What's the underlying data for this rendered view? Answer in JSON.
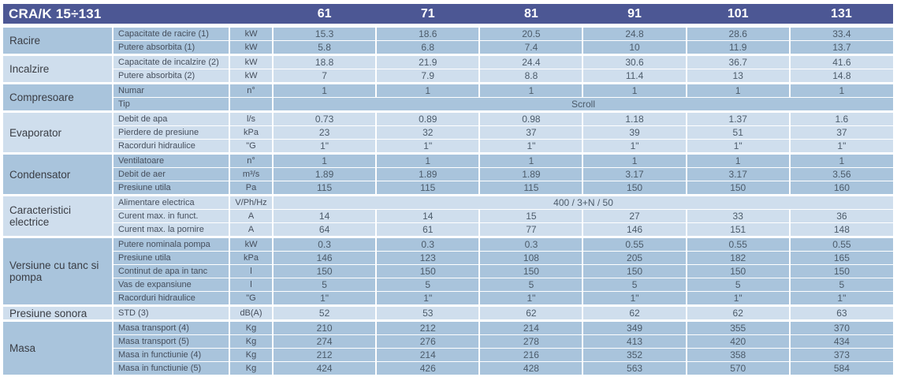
{
  "header": {
    "title": "CRA/K 15÷131",
    "columns": [
      "61",
      "71",
      "81",
      "91",
      "101",
      "131"
    ]
  },
  "colors": {
    "header_bg": "#4c5794",
    "header_text": "#ffffff",
    "band_medium": "#a9c4dc",
    "band_light": "#cfdeed",
    "text_label": "#3a3d44",
    "text_attr": "#454e5c",
    "text_value": "#4c5b6a"
  },
  "groups": [
    {
      "label": "Racire",
      "shade": "medium",
      "rows": [
        {
          "attr": "Capacitate de racire (1)",
          "unit": "kW",
          "values": [
            "15.3",
            "18.6",
            "20.5",
            "24.8",
            "28.6",
            "33.4"
          ]
        },
        {
          "attr": "Putere absorbita (1)",
          "unit": "kW",
          "values": [
            "5.8",
            "6.8",
            "7.4",
            "10",
            "11.9",
            "13.7"
          ]
        }
      ]
    },
    {
      "label": "Incalzire",
      "shade": "light",
      "rows": [
        {
          "attr": "Capacitate de incalzire (2)",
          "unit": "kW",
          "values": [
            "18.8",
            "21.9",
            "24.4",
            "30.6",
            "36.7",
            "41.6"
          ]
        },
        {
          "attr": "Putere absorbita (2)",
          "unit": "kW",
          "values": [
            "7",
            "7.9",
            "8.8",
            "11.4",
            "13",
            "14.8"
          ]
        }
      ]
    },
    {
      "label": "Compresoare",
      "shade": "medium",
      "rows": [
        {
          "attr": "Numar",
          "unit": "n°",
          "values": [
            "1",
            "1",
            "1",
            "1",
            "1",
            "1"
          ]
        },
        {
          "attr": "Tip",
          "unit": "",
          "span": "Scroll"
        }
      ]
    },
    {
      "label": "Evaporator",
      "shade": "light",
      "rows": [
        {
          "attr": "Debit de apa",
          "unit": "l/s",
          "values": [
            "0.73",
            "0.89",
            "0.98",
            "1.18",
            "1.37",
            "1.6"
          ]
        },
        {
          "attr": "Pierdere de presiune",
          "unit": "kPa",
          "values": [
            "23",
            "32",
            "37",
            "39",
            "51",
            "37"
          ]
        },
        {
          "attr": "Racorduri hidraulice",
          "unit": "\"G",
          "values": [
            "1\"",
            "1\"",
            "1\"",
            "1\"",
            "1\"",
            "1\""
          ]
        }
      ]
    },
    {
      "label": "Condensator",
      "shade": "medium",
      "rows": [
        {
          "attr": "Ventilatoare",
          "unit": "n°",
          "values": [
            "1",
            "1",
            "1",
            "1",
            "1",
            "1"
          ]
        },
        {
          "attr": "Debit de aer",
          "unit": "m³/s",
          "values": [
            "1.89",
            "1.89",
            "1.89",
            "3.17",
            "3.17",
            "3.56"
          ]
        },
        {
          "attr": "Presiune utila",
          "unit": "Pa",
          "values": [
            "115",
            "115",
            "115",
            "150",
            "150",
            "160"
          ]
        }
      ]
    },
    {
      "label": "Caracteristici electrice",
      "shade": "light",
      "rows": [
        {
          "attr": "Alimentare electrica",
          "unit": "V/Ph/Hz",
          "span": "400 / 3+N / 50"
        },
        {
          "attr": "Curent max. in funct.",
          "unit": "A",
          "values": [
            "14",
            "14",
            "15",
            "27",
            "33",
            "36"
          ]
        },
        {
          "attr": "Curent max. la pornire",
          "unit": "A",
          "values": [
            "64",
            "61",
            "77",
            "146",
            "151",
            "148"
          ]
        }
      ]
    },
    {
      "label": "Versiune cu tanc si pompa",
      "shade": "medium",
      "rows": [
        {
          "attr": "Putere nominala pompa",
          "unit": "kW",
          "values": [
            "0.3",
            "0.3",
            "0.3",
            "0.55",
            "0.55",
            "0.55"
          ]
        },
        {
          "attr": "Presiune utila",
          "unit": "kPa",
          "values": [
            "146",
            "123",
            "108",
            "205",
            "182",
            "165"
          ]
        },
        {
          "attr": "Continut de apa in tanc",
          "unit": "l",
          "values": [
            "150",
            "150",
            "150",
            "150",
            "150",
            "150"
          ]
        },
        {
          "attr": "Vas de expansiune",
          "unit": "l",
          "values": [
            "5",
            "5",
            "5",
            "5",
            "5",
            "5"
          ]
        },
        {
          "attr": "Racorduri hidraulice",
          "unit": "\"G",
          "values": [
            "1\"",
            "1\"",
            "1\"",
            "1\"",
            "1\"",
            "1\""
          ]
        }
      ]
    },
    {
      "label": "Presiune sonora",
      "shade": "light",
      "rows": [
        {
          "attr": "STD (3)",
          "unit": "dB(A)",
          "values": [
            "52",
            "53",
            "62",
            "62",
            "62",
            "63"
          ]
        }
      ]
    },
    {
      "label": "Masa",
      "shade": "medium",
      "rows": [
        {
          "attr": "Masa transport (4)",
          "unit": "Kg",
          "values": [
            "210",
            "212",
            "214",
            "349",
            "355",
            "370"
          ]
        },
        {
          "attr": "Masa transport (5)",
          "unit": "Kg",
          "values": [
            "274",
            "276",
            "278",
            "413",
            "420",
            "434"
          ]
        },
        {
          "attr": "Masa in functiunie (4)",
          "unit": "Kg",
          "values": [
            "212",
            "214",
            "216",
            "352",
            "358",
            "373"
          ]
        },
        {
          "attr": "Masa in functiunie (5)",
          "unit": "Kg",
          "values": [
            "424",
            "426",
            "428",
            "563",
            "570",
            "584"
          ]
        }
      ]
    }
  ]
}
